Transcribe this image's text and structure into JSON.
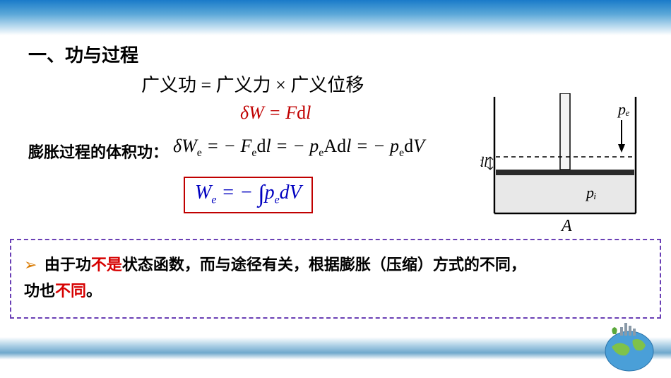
{
  "section_title": "一、功与过程",
  "generalized_work": "广义功 = 广义力 × 广义位移",
  "eq1_html": "δW = F<span class='d'>d</span>l",
  "vol_work_label": "膨胀过程的体积功：",
  "eq2_html": "δW<sub>e</sub> = − F<sub>e</sub><span class='rm'>d</span>l = − p<sub>e</sub><span class='rm'>A</span><span class='rm'>d</span>l = − p<sub>e</sub><span class='rm'>d</span>V",
  "eq_box_html": "W<sub>e</sub> = − <span class='int'>∫</span>p<sub>e</sub>dV",
  "note_line1": "由于功",
  "note_red1": "不是",
  "note_line2": "状态函数，而与途径有关，根据膨胀（压缩）方式的不同，",
  "note_line3": "功也",
  "note_red2": "不同",
  "note_line4": "。",
  "diagram": {
    "pe_label": "pₑ",
    "pi_label": "pᵢ",
    "dl_label": "dl",
    "A_label": "A",
    "colors": {
      "stroke": "#000000",
      "fill_liquid": "#e8e8e8",
      "piston": "#2a2a2a"
    }
  },
  "colors": {
    "sky_top": "#1a7bc9",
    "accent_red": "#c00000",
    "accent_blue": "#0000c0",
    "note_border": "#6a3fb5",
    "bullet": "#d97a00"
  }
}
